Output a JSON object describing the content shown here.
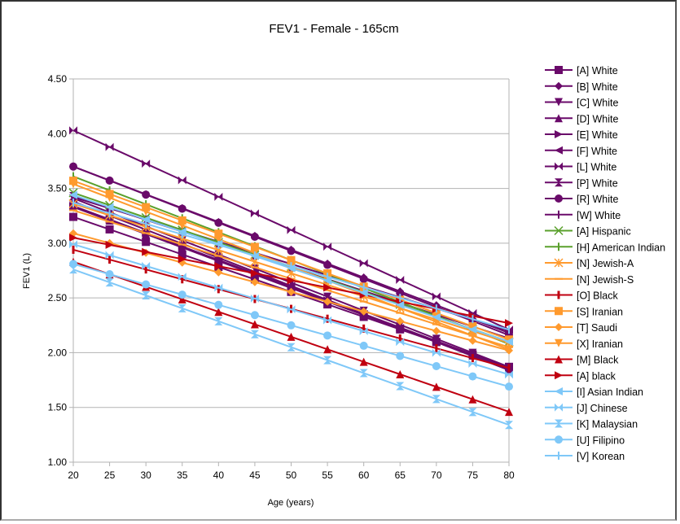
{
  "chart_data": {
    "type": "line",
    "title": "FEV1 - Female - 165cm",
    "xlabel": "Age (years)",
    "ylabel": "FEV1 (L)",
    "x": [
      20,
      25,
      30,
      35,
      40,
      45,
      50,
      55,
      60,
      65,
      70,
      75,
      80
    ],
    "xlim": [
      20,
      80
    ],
    "ylim": [
      1.0,
      4.5
    ],
    "yticks": [
      "1.00",
      "1.50",
      "2.00",
      "2.50",
      "3.00",
      "3.50",
      "4.00",
      "4.50"
    ],
    "xticks": [
      "20",
      "25",
      "30",
      "35",
      "40",
      "45",
      "50",
      "55",
      "60",
      "65",
      "70",
      "75",
      "80"
    ],
    "grid": "horizontal",
    "legend": "right",
    "series": [
      {
        "name": "[A] White",
        "color": "#6a0a6a",
        "marker": "square",
        "start": 3.24,
        "end": 1.87
      },
      {
        "name": "[B] White",
        "color": "#6a0a6a",
        "marker": "diamond",
        "start": 3.7,
        "end": 2.18
      },
      {
        "name": "[C] White",
        "color": "#6a0a6a",
        "marker": "tri-down",
        "start": 3.41,
        "end": 1.87
      },
      {
        "name": "[D] White",
        "color": "#6a0a6a",
        "marker": "tri-up",
        "start": 3.33,
        "end": 1.85
      },
      {
        "name": "[E] White",
        "color": "#6a0a6a",
        "marker": "tri-right",
        "start": 3.34,
        "end": 1.86
      },
      {
        "name": "[F] White",
        "color": "#6a0a6a",
        "marker": "tri-left",
        "start": 3.38,
        "end": 1.84
      },
      {
        "name": "[L] White",
        "color": "#6a0a6a",
        "marker": "bowtie",
        "start": 4.03,
        "end": 2.21
      },
      {
        "name": "[P] White",
        "color": "#6a0a6a",
        "marker": "hourglass",
        "start": 3.43,
        "end": 2.13
      },
      {
        "name": "[R] White",
        "color": "#6a0a6a",
        "marker": "circle",
        "start": 3.7,
        "end": 2.16
      },
      {
        "name": "[W] White",
        "color": "#6a0a6a",
        "marker": "plus",
        "start": 3.42,
        "end": 2.2
      },
      {
        "name": "[A] Hispanic",
        "color": "#5aa02c",
        "marker": "x",
        "start": 3.46,
        "end": 2.1
      },
      {
        "name": "[H] American Indian",
        "color": "#5aa02c",
        "marker": "plus",
        "start": 3.61,
        "end": 2.08
      },
      {
        "name": "[N] Jewish-A",
        "color": "#ff9a2e",
        "marker": "star",
        "start": 3.36,
        "end": 2.09
      },
      {
        "name": "[N] Jewish-S",
        "color": "#ff9a2e",
        "marker": "dash",
        "start": 3.3,
        "end": 2.05
      },
      {
        "name": "[O] Black",
        "color": "#c00010",
        "marker": "vbar",
        "start": 2.94,
        "end": 1.86
      },
      {
        "name": "[S] Iranian",
        "color": "#ff9a2e",
        "marker": "square",
        "start": 3.57,
        "end": 2.12
      },
      {
        "name": "[T] Saudi",
        "color": "#ff9a2e",
        "marker": "diamond",
        "start": 3.09,
        "end": 2.02
      },
      {
        "name": "[X] Iranian",
        "color": "#ff9a2e",
        "marker": "tri-down",
        "start": 3.54,
        "end": 2.03
      },
      {
        "name": "[M] Black",
        "color": "#c00010",
        "marker": "tri-up",
        "start": 2.83,
        "end": 1.46
      },
      {
        "name": "[A] black",
        "color": "#c00010",
        "marker": "tri-right",
        "start": 3.05,
        "end": 2.27
      },
      {
        "name": "[I] Asian Indian",
        "color": "#7fc8f8",
        "marker": "tri-left",
        "start": 3.44,
        "end": 2.1
      },
      {
        "name": "[J] Chinese",
        "color": "#7fc8f8",
        "marker": "bowtie",
        "start": 2.99,
        "end": 1.8
      },
      {
        "name": "[K] Malaysian",
        "color": "#7fc8f8",
        "marker": "hourglass",
        "start": 2.76,
        "end": 1.34
      },
      {
        "name": "[U] Filipino",
        "color": "#7fc8f8",
        "marker": "circle",
        "start": 2.81,
        "end": 1.69
      },
      {
        "name": "[V] Korean",
        "color": "#7fc8f8",
        "marker": "plus",
        "start": 3.37,
        "end": 2.21
      }
    ]
  }
}
